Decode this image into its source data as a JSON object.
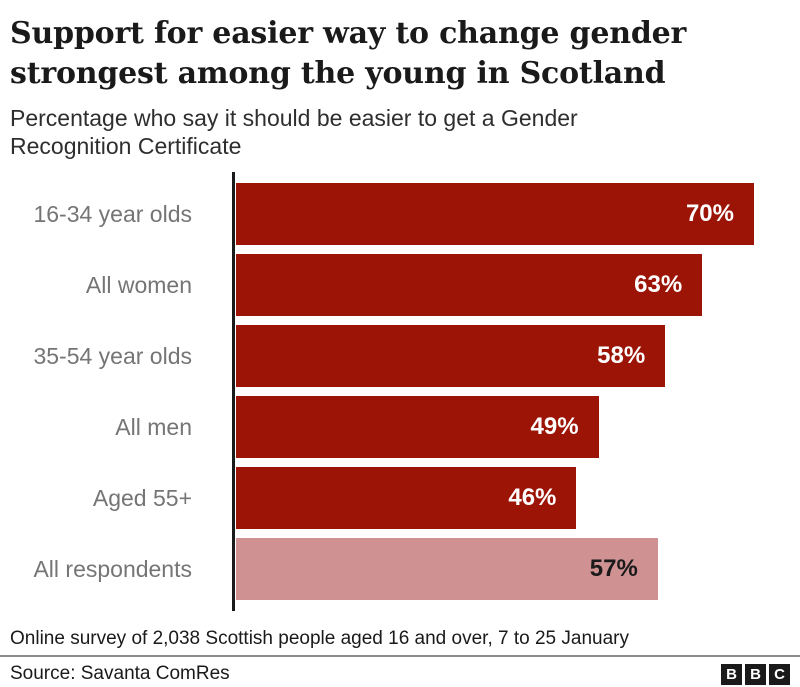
{
  "header": {
    "title": "Support for easier way to change gender strongest among the young in Scotland",
    "subtitle": "Percentage who say it should be easier to get a Gender Recognition Certificate"
  },
  "chart_data": {
    "type": "bar",
    "orientation": "horizontal",
    "categories": [
      "16-34 year olds",
      "All women",
      "35-54 year olds",
      "All men",
      "Aged 55+",
      "All respondents"
    ],
    "values": [
      70,
      63,
      58,
      49,
      46,
      57
    ],
    "value_labels": [
      "70%",
      "63%",
      "58%",
      "49%",
      "46%",
      "57%"
    ],
    "highlighted_category": "All respondents",
    "xlim": [
      0,
      75
    ],
    "grid": false,
    "legend": false,
    "bar_color": "#9b1405",
    "highlight_bar_color": "#d09193",
    "axis_color": "#1a1a1a",
    "category_label_color": "#757575",
    "value_label_color": "#ffffff",
    "highlight_value_label_color": "#1a1a1a"
  },
  "footer": {
    "note": "Online survey of 2,038 Scottish people aged 16 and over, 7 to 25 January",
    "source": "Source: Savanta ComRes",
    "logo_letters": [
      "B",
      "B",
      "C"
    ]
  }
}
